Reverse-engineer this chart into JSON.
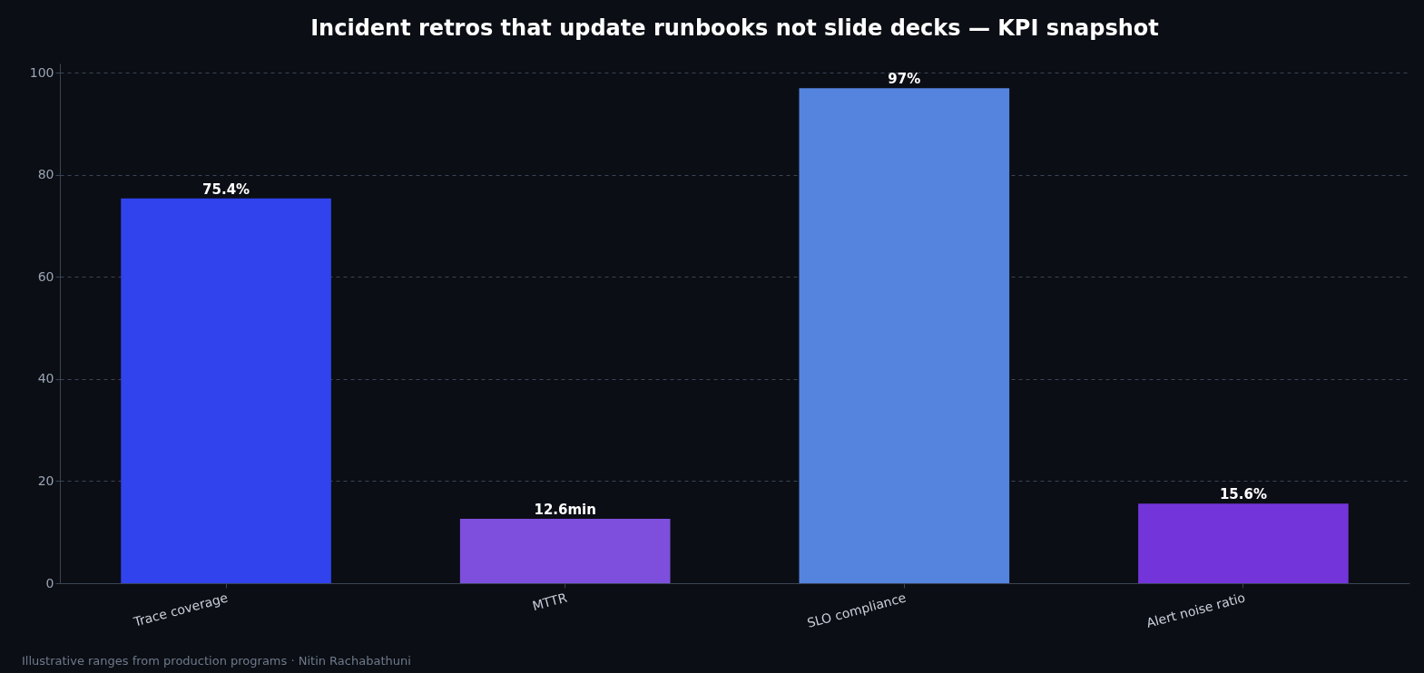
{
  "chart_data": {
    "type": "bar",
    "title": "Incident retros that update runbooks not slide decks — KPI snapshot",
    "categories": [
      "Trace coverage",
      "MTTR",
      "SLO compliance",
      "Alert noise ratio"
    ],
    "values": [
      75.4,
      12.6,
      97,
      15.6
    ],
    "colors": [
      "#3043ec",
      "#7e4fdd",
      "#5584de",
      "#7335d9"
    ],
    "value_labels": [
      "75.4%",
      "12.6min",
      "97%",
      "15.6%"
    ],
    "ylim": [
      0,
      101.85
    ],
    "yticks": [
      0,
      20,
      40,
      60,
      80,
      100
    ],
    "grid": "y",
    "annotations": [
      "Illustrative ranges from production programs · Nitin Rachabathuni"
    ]
  }
}
